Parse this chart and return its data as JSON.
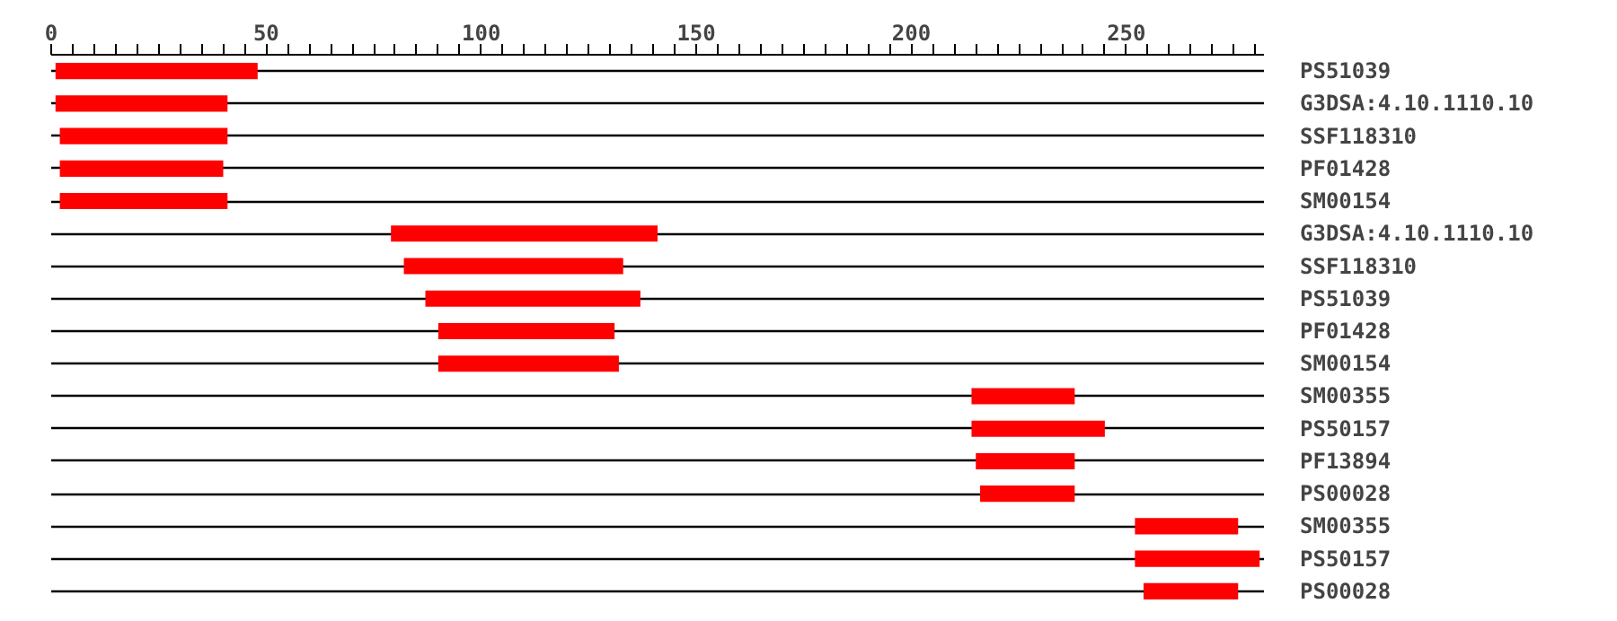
{
  "chart_data": {
    "type": "bar",
    "orientation": "horizontal",
    "color": "#ff0000",
    "grid": "y",
    "categories": [
      "PS51039",
      "G3DSA:4.10.1110.10",
      "SSF118310",
      "PF01428",
      "SM00154",
      "G3DSA:4.10.1110.10",
      "SSF118310",
      "PS51039",
      "PF01428",
      "SM00154",
      "SM00355",
      "PS50157",
      "PF13894",
      "PS00028",
      "SM00355",
      "PS50157",
      "PS00028"
    ],
    "base": [
      1,
      1,
      2,
      2,
      2,
      79,
      82,
      87,
      90,
      90,
      214,
      214,
      215,
      216,
      252,
      252,
      254
    ],
    "values": [
      47,
      40,
      39,
      38,
      39,
      62,
      51,
      50,
      41,
      42,
      24,
      31,
      23,
      22,
      24,
      29,
      22
    ],
    "xlim": [
      0,
      282
    ],
    "xticks": [
      0,
      {
        "value": 5,
        "label": null
      },
      {
        "value": 10,
        "label": null
      },
      {
        "value": 15,
        "label": null
      },
      {
        "value": 20,
        "label": null
      },
      {
        "value": 25,
        "label": null
      },
      {
        "value": 30,
        "label": null
      },
      {
        "value": 35,
        "label": null
      },
      {
        "value": 40,
        "label": null
      },
      {
        "value": 45,
        "label": null
      },
      50,
      {
        "value": 55,
        "label": null
      },
      {
        "value": 60,
        "label": null
      },
      {
        "value": 65,
        "label": null
      },
      {
        "value": 70,
        "label": null
      },
      {
        "value": 75,
        "label": null
      },
      {
        "value": 80,
        "label": null
      },
      {
        "value": 85,
        "label": null
      },
      {
        "value": 90,
        "label": null
      },
      {
        "value": 95,
        "label": null
      },
      100,
      {
        "value": 105,
        "label": null
      },
      {
        "value": 110,
        "label": null
      },
      {
        "value": 115,
        "label": null
      },
      {
        "value": 120,
        "label": null
      },
      {
        "value": 125,
        "label": null
      },
      {
        "value": 130,
        "label": null
      },
      {
        "value": 135,
        "label": null
      },
      {
        "value": 140,
        "label": null
      },
      {
        "value": 145,
        "label": null
      },
      150,
      {
        "value": 155,
        "label": null
      },
      {
        "value": 160,
        "label": null
      },
      {
        "value": 165,
        "label": null
      },
      {
        "value": 170,
        "label": null
      },
      {
        "value": 175,
        "label": null
      },
      {
        "value": 180,
        "label": null
      },
      {
        "value": 185,
        "label": null
      },
      {
        "value": 190,
        "label": null
      },
      {
        "value": 195,
        "label": null
      },
      200,
      {
        "value": 205,
        "label": null
      },
      {
        "value": 210,
        "label": null
      },
      {
        "value": 215,
        "label": null
      },
      {
        "value": 220,
        "label": null
      },
      {
        "value": 225,
        "label": null
      },
      {
        "value": 230,
        "label": null
      },
      {
        "value": 235,
        "label": null
      },
      {
        "value": 240,
        "label": null
      },
      {
        "value": 245,
        "label": null
      },
      250,
      {
        "value": 255,
        "label": null
      },
      {
        "value": 260,
        "label": null
      },
      {
        "value": 265,
        "label": null
      },
      {
        "value": 270,
        "label": null
      },
      {
        "value": 275,
        "label": null
      },
      {
        "value": 280,
        "label": null
      }
    ]
  }
}
